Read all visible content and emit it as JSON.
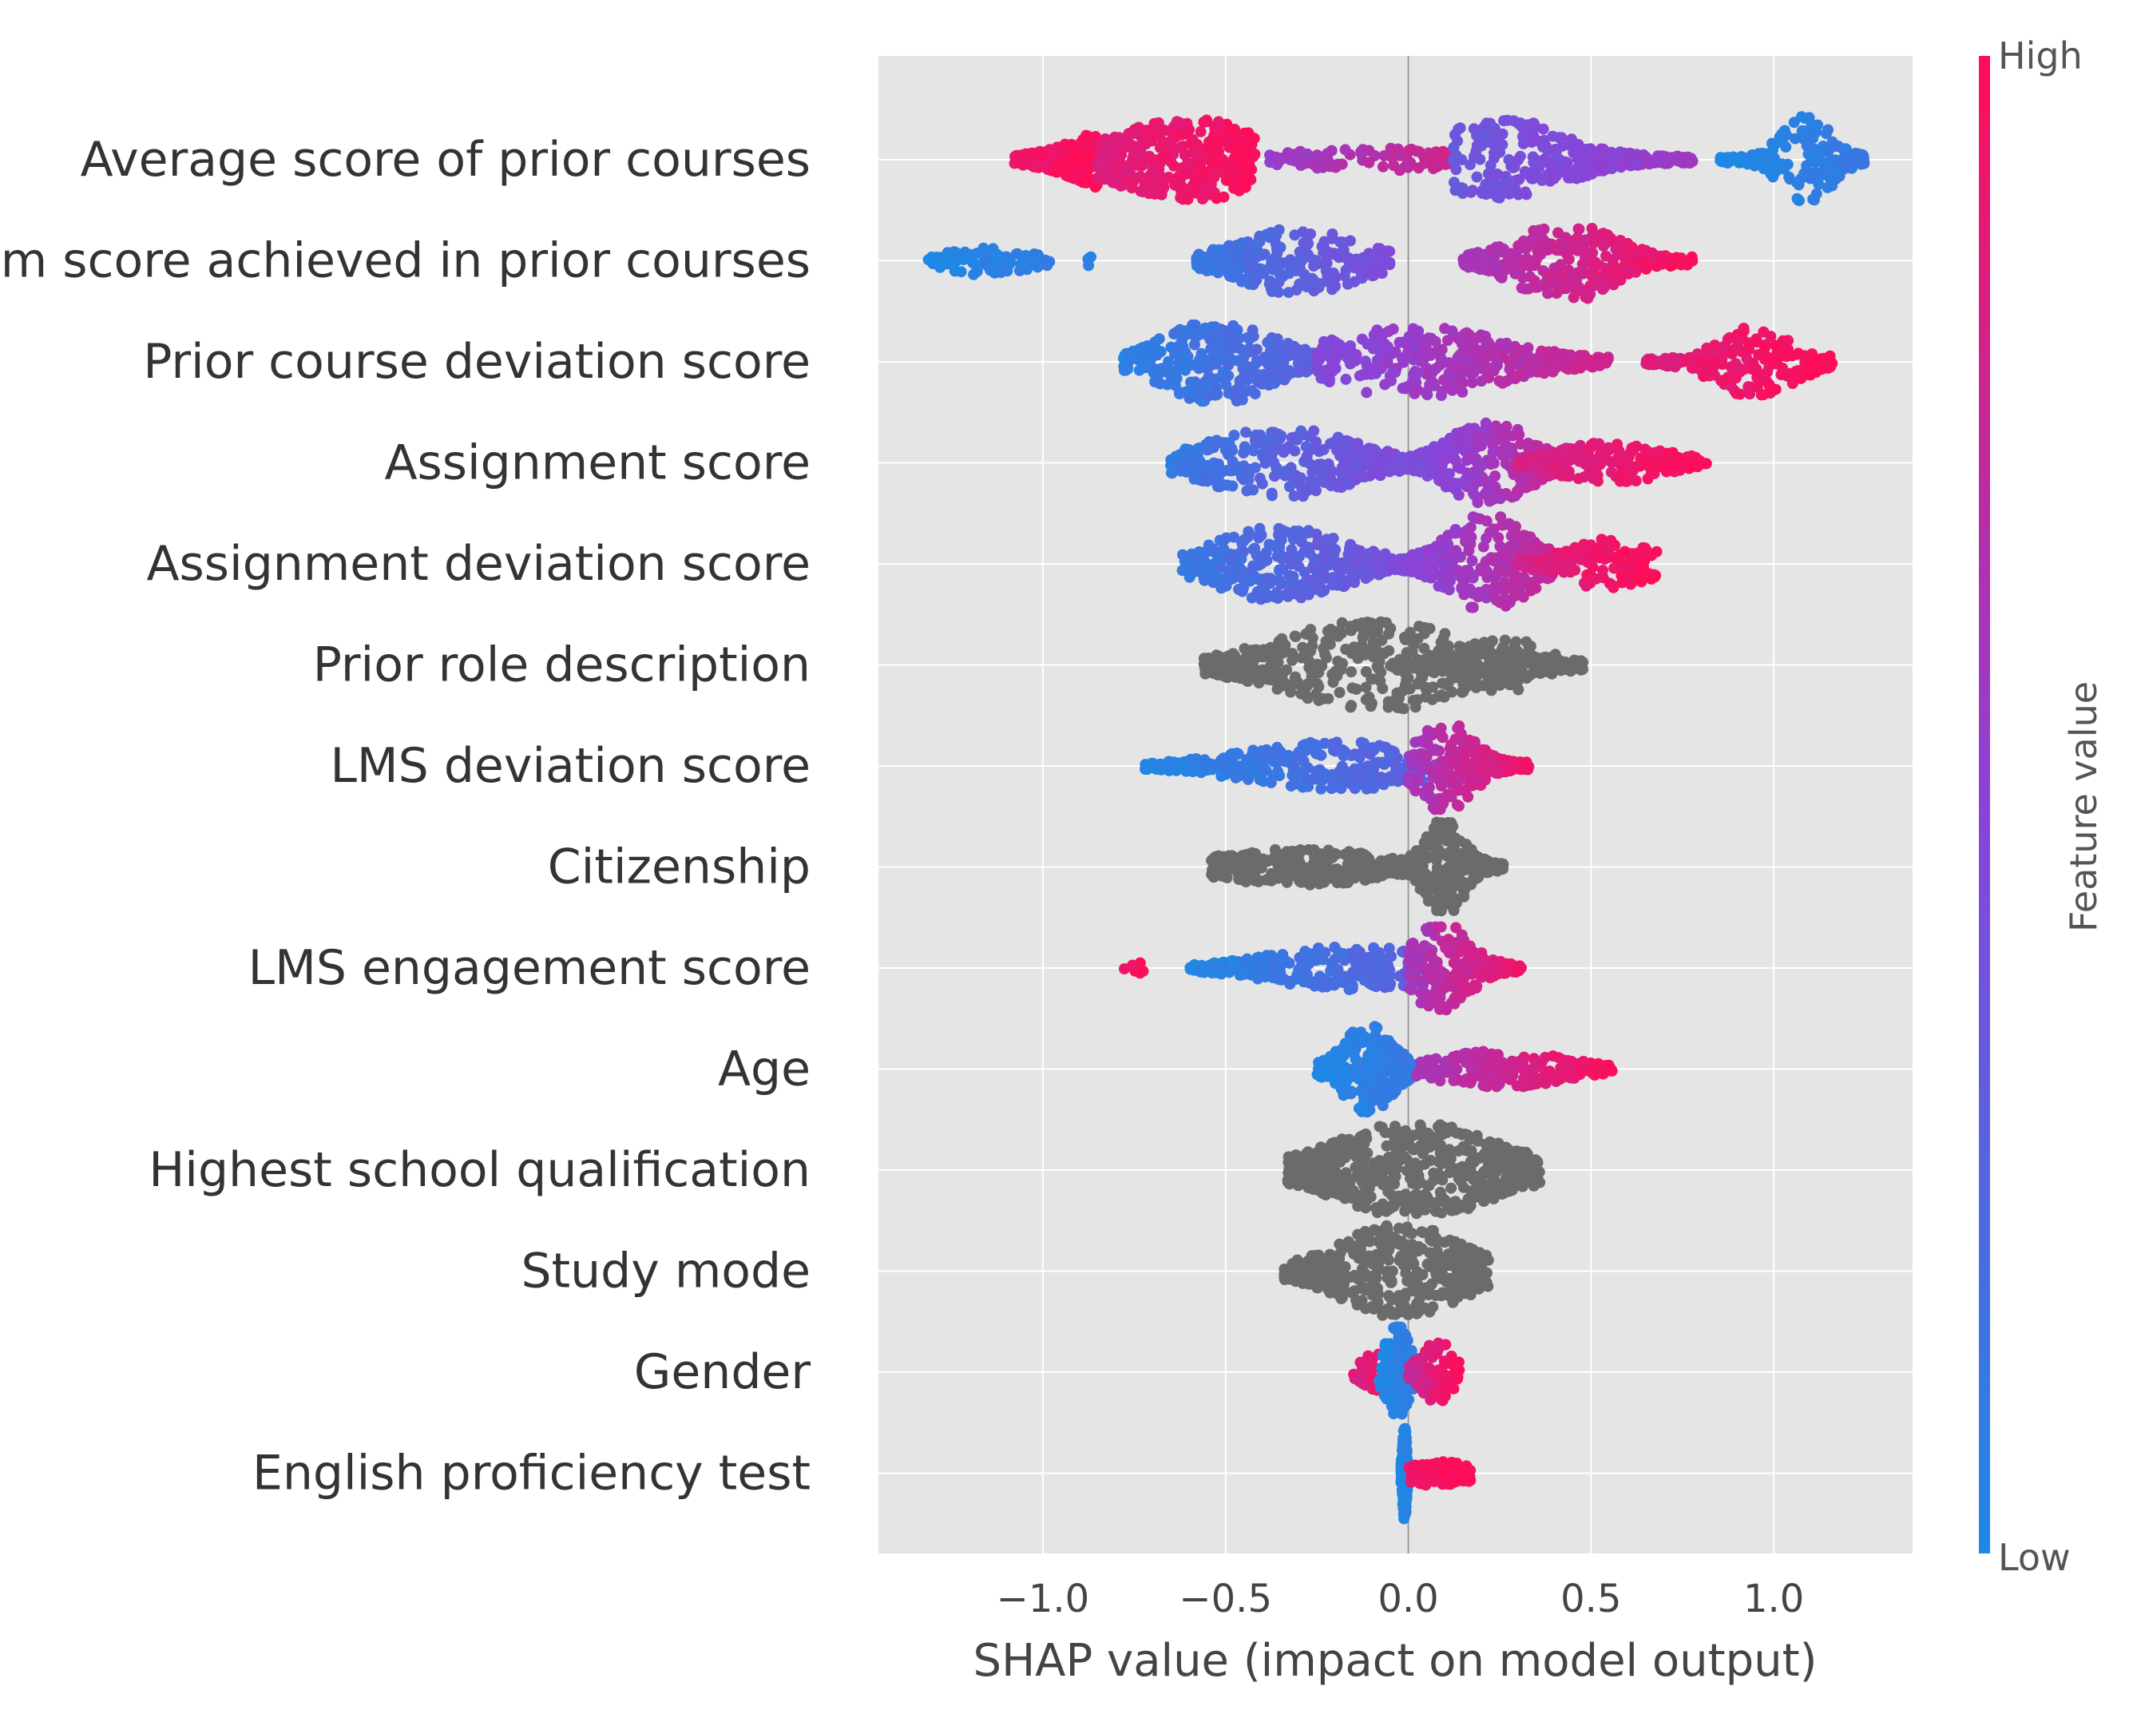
{
  "chart_data": {
    "type": "scatter",
    "subtype": "shap-beeswarm-summary",
    "title": "",
    "xlabel": "SHAP value (impact on model output)",
    "ylabel": "",
    "xlim": [
      -1.45,
      1.38
    ],
    "x_ticks": [
      {
        "value": -1.0,
        "label": "−1.0"
      },
      {
        "value": -0.5,
        "label": "−0.5"
      },
      {
        "value": 0.0,
        "label": "0.0"
      },
      {
        "value": 0.5,
        "label": "0.5"
      },
      {
        "value": 1.0,
        "label": "1.0"
      }
    ],
    "grid": true,
    "zero_line": true,
    "colorbar": {
      "title": "Feature value",
      "high_label": "High",
      "low_label": "Low",
      "low_color": "#1e88e5",
      "high_color": "#ff0d57"
    },
    "neutral_color": "#6b6b6b",
    "features": [
      {
        "name": "Average score of prior courses",
        "categorical": false,
        "segments": [
          {
            "from": -1.08,
            "to": -0.85,
            "peak": -0.72,
            "spread": 0.14,
            "amp": 0.42,
            "vlo": 0.92,
            "vhi": 1.0,
            "n": 260
          },
          {
            "from": -0.85,
            "to": -0.42,
            "peak": -0.6,
            "spread": 0.18,
            "amp": 0.4,
            "vlo": 0.85,
            "vhi": 0.98,
            "n": 320
          },
          {
            "from": -0.38,
            "to": 0.12,
            "peak": -0.1,
            "spread": 0.2,
            "amp": 0.12,
            "vlo": 0.55,
            "vhi": 0.8,
            "n": 90
          },
          {
            "from": 0.12,
            "to": 0.78,
            "peak": 0.25,
            "spread": 0.16,
            "amp": 0.4,
            "vlo": 0.35,
            "vhi": 0.6,
            "n": 320
          },
          {
            "from": 0.85,
            "to": 1.25,
            "peak": 1.09,
            "spread": 0.06,
            "amp": 0.45,
            "vlo": 0.0,
            "vhi": 0.12,
            "n": 200
          }
        ]
      },
      {
        "name": "Maximum score achieved in prior courses",
        "categorical": false,
        "segments": [
          {
            "from": -1.32,
            "to": -0.98,
            "peak": -1.15,
            "spread": 0.1,
            "amp": 0.14,
            "vlo": 0.0,
            "vhi": 0.08,
            "n": 90
          },
          {
            "from": -0.88,
            "to": -0.85,
            "peak": -0.87,
            "spread": 0.02,
            "amp": 0.05,
            "vlo": 0.05,
            "vhi": 0.1,
            "n": 4
          },
          {
            "from": -0.58,
            "to": -0.05,
            "peak": -0.3,
            "spread": 0.15,
            "amp": 0.32,
            "vlo": 0.1,
            "vhi": 0.45,
            "n": 260
          },
          {
            "from": 0.15,
            "to": 0.75,
            "peak": 0.43,
            "spread": 0.12,
            "amp": 0.4,
            "vlo": 0.6,
            "vhi": 0.98,
            "n": 320
          },
          {
            "from": 0.76,
            "to": 0.78,
            "peak": 0.77,
            "spread": 0.01,
            "amp": 0.05,
            "vlo": 0.95,
            "vhi": 1.0,
            "n": 3
          }
        ]
      },
      {
        "name": "Prior course deviation score",
        "categorical": false,
        "segments": [
          {
            "from": -0.78,
            "to": -0.25,
            "peak": -0.52,
            "spread": 0.14,
            "amp": 0.4,
            "vlo": 0.05,
            "vhi": 0.3,
            "n": 300
          },
          {
            "from": -0.25,
            "to": 0.55,
            "peak": 0.02,
            "spread": 0.22,
            "amp": 0.34,
            "vlo": 0.45,
            "vhi": 0.8,
            "n": 380
          },
          {
            "from": 0.65,
            "to": 1.16,
            "peak": 0.95,
            "spread": 0.1,
            "amp": 0.34,
            "vlo": 0.85,
            "vhi": 1.0,
            "n": 220
          }
        ]
      },
      {
        "name": "Assignment score",
        "categorical": false,
        "segments": [
          {
            "from": -0.65,
            "to": -0.02,
            "peak": -0.35,
            "spread": 0.18,
            "amp": 0.34,
            "vlo": 0.1,
            "vhi": 0.45,
            "n": 330
          },
          {
            "from": -0.02,
            "to": 0.4,
            "peak": 0.22,
            "spread": 0.1,
            "amp": 0.42,
            "vlo": 0.4,
            "vhi": 0.75,
            "n": 300
          },
          {
            "from": 0.3,
            "to": 0.82,
            "peak": 0.55,
            "spread": 0.14,
            "amp": 0.2,
            "vlo": 0.8,
            "vhi": 1.0,
            "n": 200
          }
        ]
      },
      {
        "name": "Assignment deviation score",
        "categorical": false,
        "segments": [
          {
            "from": -0.62,
            "to": -0.05,
            "peak": -0.35,
            "spread": 0.16,
            "amp": 0.36,
            "vlo": 0.1,
            "vhi": 0.4,
            "n": 320
          },
          {
            "from": -0.05,
            "to": 0.4,
            "peak": 0.22,
            "spread": 0.1,
            "amp": 0.48,
            "vlo": 0.45,
            "vhi": 0.75,
            "n": 320
          },
          {
            "from": 0.3,
            "to": 0.68,
            "peak": 0.55,
            "spread": 0.1,
            "amp": 0.26,
            "vlo": 0.82,
            "vhi": 1.0,
            "n": 160
          }
        ]
      },
      {
        "name": "Prior role description",
        "categorical": true,
        "segments": [
          {
            "from": -0.56,
            "to": 0.48,
            "peak": -0.1,
            "spread": 0.22,
            "amp": 0.46,
            "vlo": 0.5,
            "vhi": 0.5,
            "n": 520
          },
          {
            "from": -0.05,
            "to": 0.45,
            "peak": 0.25,
            "spread": 0.1,
            "amp": 0.28,
            "vlo": 0.5,
            "vhi": 0.5,
            "n": 160
          }
        ]
      },
      {
        "name": "LMS deviation score",
        "categorical": false,
        "segments": [
          {
            "from": -0.72,
            "to": 0.05,
            "peak": -0.2,
            "spread": 0.22,
            "amp": 0.24,
            "vlo": 0.0,
            "vhi": 0.3,
            "n": 300
          },
          {
            "from": 0.0,
            "to": 0.33,
            "peak": 0.1,
            "spread": 0.07,
            "amp": 0.44,
            "vlo": 0.6,
            "vhi": 0.95,
            "n": 260
          }
        ]
      },
      {
        "name": "Citizenship",
        "categorical": true,
        "segments": [
          {
            "from": -0.54,
            "to": 0.0,
            "peak": -0.3,
            "spread": 0.2,
            "amp": 0.18,
            "vlo": 0.5,
            "vhi": 0.5,
            "n": 300
          },
          {
            "from": 0.0,
            "to": 0.26,
            "peak": 0.1,
            "spread": 0.05,
            "amp": 0.46,
            "vlo": 0.5,
            "vhi": 0.5,
            "n": 260
          }
        ]
      },
      {
        "name": "LMS engagement score",
        "categorical": false,
        "segments": [
          {
            "from": -0.78,
            "to": -0.72,
            "peak": -0.75,
            "spread": 0.03,
            "amp": 0.08,
            "vlo": 0.95,
            "vhi": 1.0,
            "n": 6
          },
          {
            "from": -0.6,
            "to": 0.03,
            "peak": -0.15,
            "spread": 0.2,
            "amp": 0.22,
            "vlo": 0.0,
            "vhi": 0.3,
            "n": 280
          },
          {
            "from": 0.0,
            "to": 0.31,
            "peak": 0.09,
            "spread": 0.07,
            "amp": 0.44,
            "vlo": 0.6,
            "vhi": 0.95,
            "n": 240
          }
        ]
      },
      {
        "name": "Age",
        "categorical": false,
        "segments": [
          {
            "from": -0.25,
            "to": 0.02,
            "peak": -0.11,
            "spread": 0.06,
            "amp": 0.44,
            "vlo": 0.0,
            "vhi": 0.12,
            "n": 240
          },
          {
            "from": 0.02,
            "to": 0.56,
            "peak": 0.25,
            "spread": 0.16,
            "amp": 0.18,
            "vlo": 0.6,
            "vhi": 1.0,
            "n": 240
          }
        ]
      },
      {
        "name": "Highest school qualification",
        "categorical": true,
        "segments": [
          {
            "from": -0.33,
            "to": 0.36,
            "peak": 0.02,
            "spread": 0.2,
            "amp": 0.46,
            "vlo": 0.5,
            "vhi": 0.5,
            "n": 560
          }
        ]
      },
      {
        "name": "Study mode",
        "categorical": true,
        "segments": [
          {
            "from": -0.34,
            "to": 0.22,
            "peak": -0.02,
            "spread": 0.15,
            "amp": 0.46,
            "vlo": 0.5,
            "vhi": 0.5,
            "n": 440
          }
        ]
      },
      {
        "name": "Gender",
        "categorical": false,
        "segments": [
          {
            "from": -0.15,
            "to": -0.02,
            "peak": -0.06,
            "spread": 0.05,
            "amp": 0.24,
            "vlo": 0.85,
            "vhi": 1.0,
            "n": 60
          },
          {
            "from": -0.08,
            "to": 0.02,
            "peak": -0.03,
            "spread": 0.03,
            "amp": 0.46,
            "vlo": 0.0,
            "vhi": 0.1,
            "n": 140
          },
          {
            "from": 0.0,
            "to": 0.14,
            "peak": 0.08,
            "spread": 0.04,
            "amp": 0.3,
            "vlo": 0.75,
            "vhi": 1.0,
            "n": 100
          }
        ]
      },
      {
        "name": "English proficiency test",
        "categorical": false,
        "segments": [
          {
            "from": -0.02,
            "to": 0.0,
            "peak": -0.01,
            "spread": 0.005,
            "amp": 0.46,
            "vlo": 0.0,
            "vhi": 0.05,
            "n": 200
          },
          {
            "from": 0.0,
            "to": 0.17,
            "peak": 0.08,
            "spread": 0.1,
            "amp": 0.12,
            "vlo": 0.95,
            "vhi": 1.0,
            "n": 120
          }
        ]
      }
    ]
  }
}
